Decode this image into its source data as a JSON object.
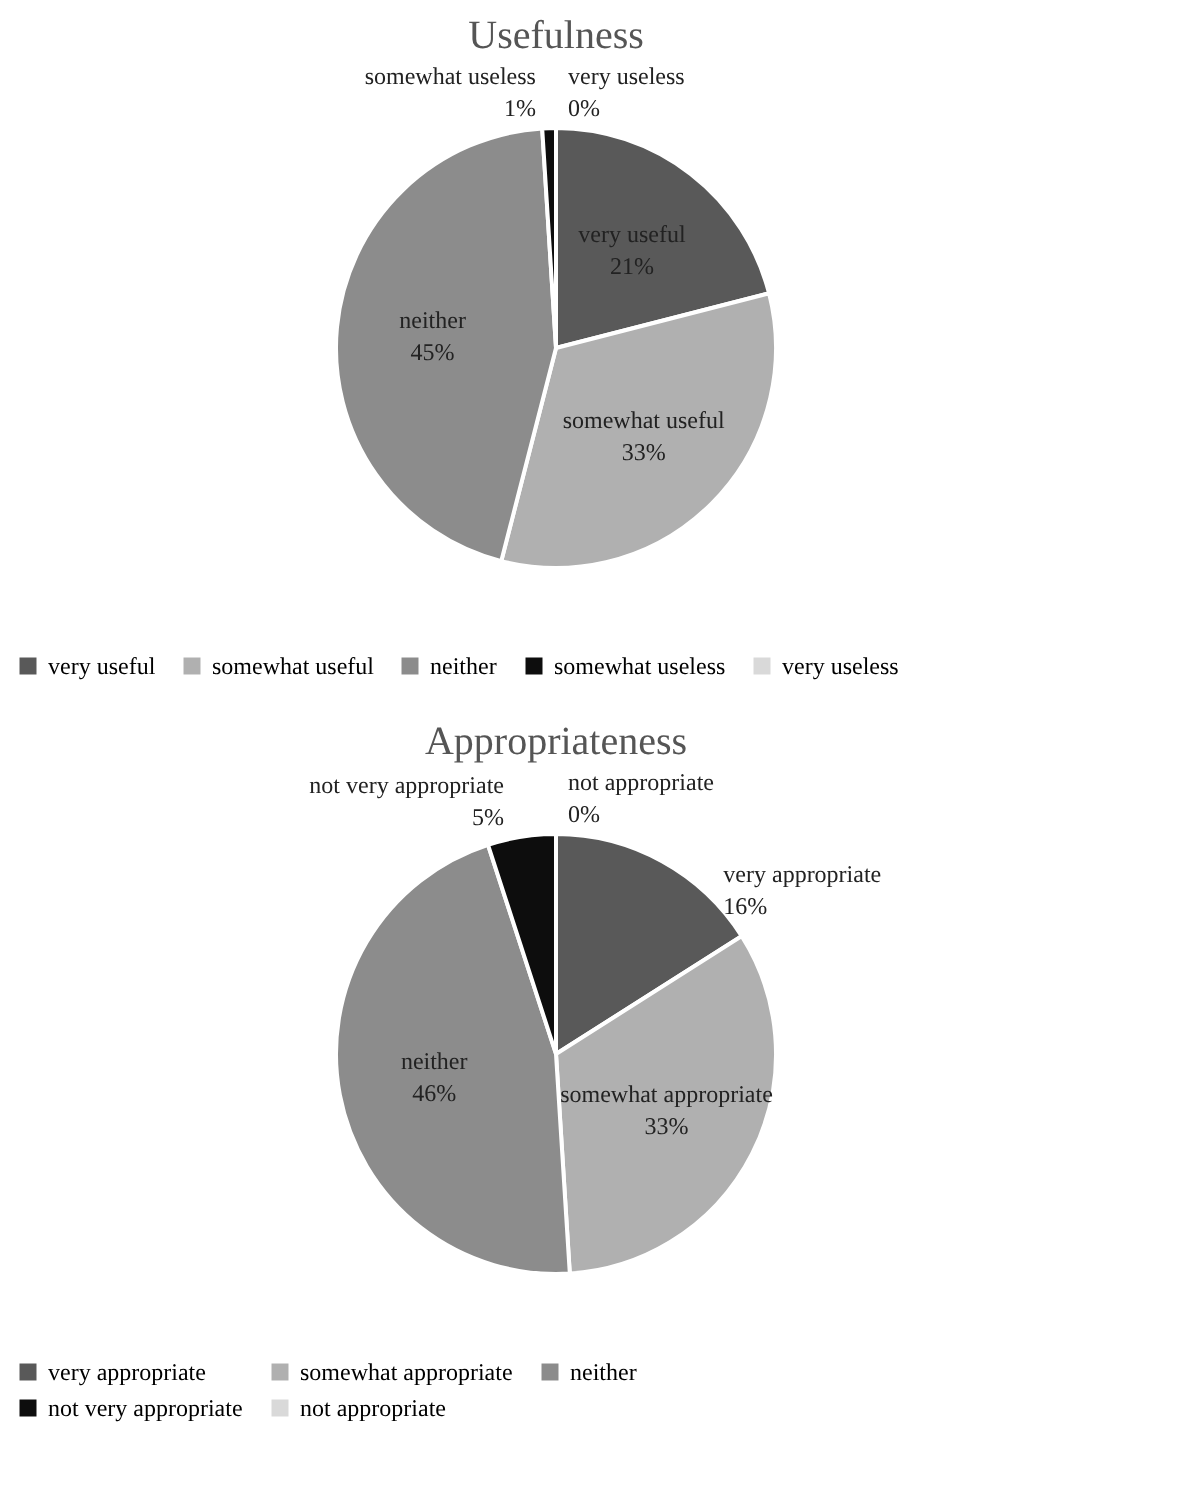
{
  "chart_data": [
    {
      "type": "pie",
      "title": "Usefulness",
      "categories": [
        "very useful",
        "somewhat useful",
        "neither",
        "somewhat useless",
        "very useless"
      ],
      "values": [
        21,
        33,
        45,
        1,
        0
      ],
      "value_labels": [
        "21%",
        "33%",
        "45%",
        "1%",
        "0%"
      ],
      "colors": [
        "#595959",
        "#b0b0b0",
        "#8c8c8c",
        "#0d0d0d",
        "#d9d9d9"
      ],
      "legend": "bottom"
    },
    {
      "type": "pie",
      "title": "Appropriateness",
      "categories": [
        "very appropriate",
        "somewhat appropriate",
        "neither",
        "not very appropriate",
        "not appropriate"
      ],
      "values": [
        16,
        33,
        46,
        5,
        0
      ],
      "value_labels": [
        "16%",
        "33%",
        "46%",
        "5%",
        "0%"
      ],
      "colors": [
        "#595959",
        "#b0b0b0",
        "#8c8c8c",
        "#0d0d0d",
        "#d9d9d9"
      ],
      "legend": "bottom"
    }
  ]
}
